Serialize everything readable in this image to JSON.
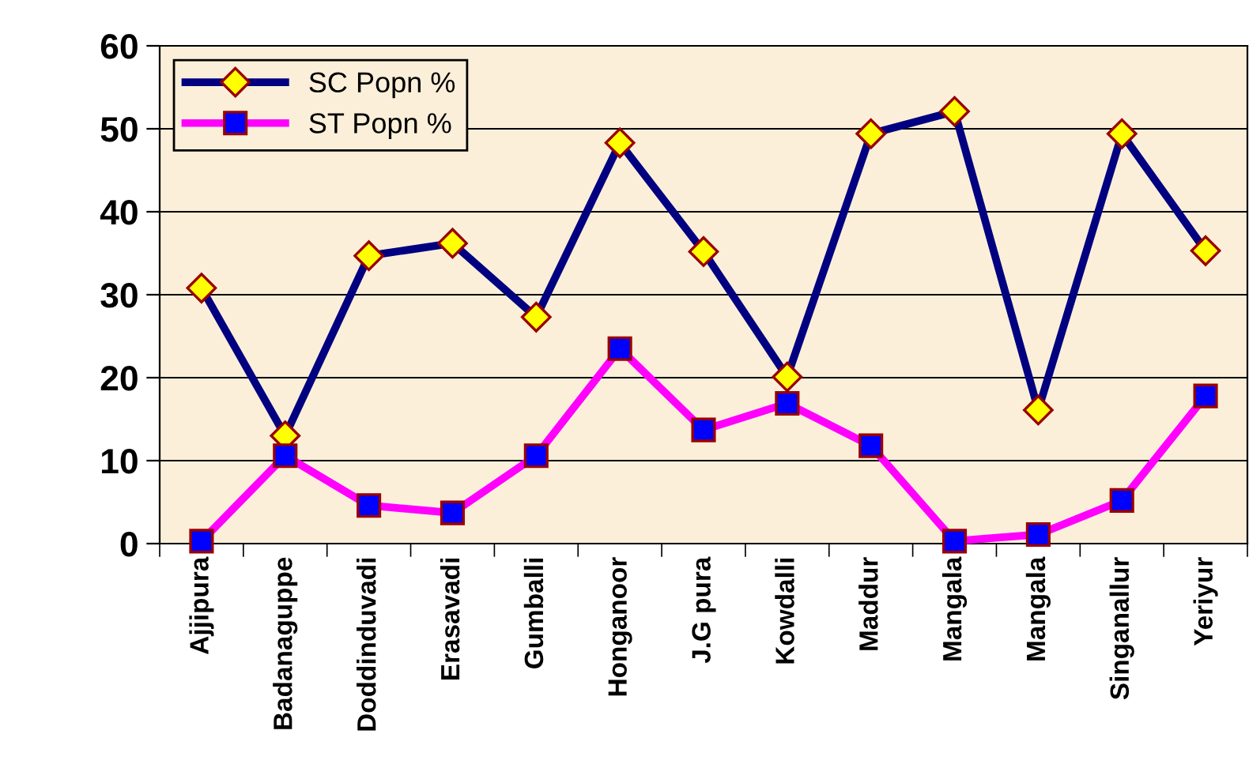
{
  "chart_data": {
    "type": "line",
    "categories": [
      "Ajjipura",
      "Badanaguppe",
      "Doddinduvadi",
      "Erasavadi",
      "Gumballi",
      "Honganoor",
      "J.G pura",
      "Kowdalli",
      "Maddur",
      "Mangala",
      "Mangala",
      "Singanallur",
      "Yeriyur"
    ],
    "series": [
      {
        "name": "SC Popn %",
        "color": "#000080",
        "marker": "diamond",
        "values": [
          30.8,
          13,
          34.7,
          36.2,
          27.3,
          48.3,
          35.2,
          20.1,
          49.4,
          52.1,
          16.1,
          49.4,
          35.3
        ]
      },
      {
        "name": "ST Popn %",
        "color": "#ff00ff",
        "marker": "square",
        "values": [
          0.3,
          10.6,
          4.6,
          3.7,
          10.6,
          23.5,
          13.7,
          16.9,
          11.8,
          0.3,
          1.1,
          5.2,
          17.8
        ]
      }
    ],
    "ylim": [
      0,
      60
    ],
    "yticks": [
      0,
      10,
      20,
      30,
      40,
      50,
      60
    ],
    "grid": "y",
    "legend": "top left"
  }
}
